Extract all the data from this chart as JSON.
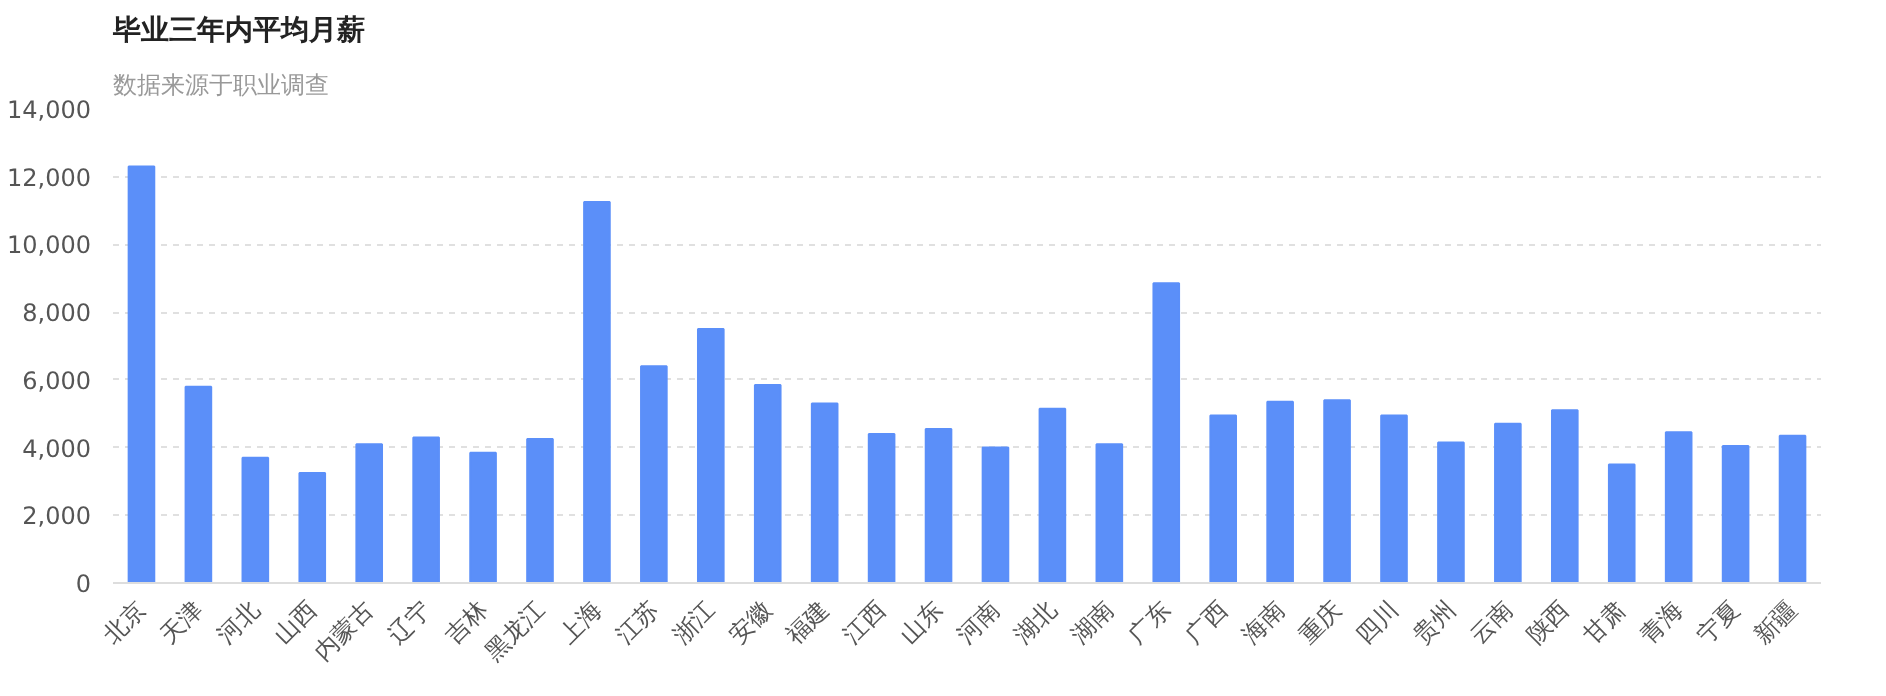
{
  "chart_data": {
    "type": "bar",
    "title": "毕业三年内平均月薪",
    "subtitle": "数据来源于职业调查",
    "categories": [
      "北京",
      "天津",
      "河北",
      "山西",
      "内蒙古",
      "辽宁",
      "吉林",
      "黑龙江",
      "上海",
      "江苏",
      "浙江",
      "安徽",
      "福建",
      "江西",
      "山东",
      "河南",
      "湖北",
      "湖南",
      "广东",
      "广西",
      "海南",
      "重庆",
      "四川",
      "贵州",
      "云南",
      "陕西",
      "甘肃",
      "青海",
      "宁夏",
      "新疆"
    ],
    "values": [
      12300,
      5800,
      3700,
      3250,
      4100,
      4300,
      3850,
      4250,
      11250,
      6400,
      7500,
      5850,
      5300,
      4400,
      4550,
      4000,
      5150,
      4100,
      8850,
      4950,
      5350,
      5400,
      4950,
      4150,
      4700,
      5100,
      3500,
      4450,
      4050,
      4350
    ],
    "color": "#5b8ff9",
    "ylim": [
      0,
      14000
    ],
    "yticks": [
      {
        "value": 0,
        "label": "0"
      },
      {
        "value": 2000,
        "label": "2,000"
      },
      {
        "value": 4000,
        "label": "4,000"
      },
      {
        "value": 6000,
        "label": "6,000"
      },
      {
        "value": 8000,
        "label": "8,000"
      },
      {
        "value": 10000,
        "label": "10,000"
      },
      {
        "value": 12000,
        "label": "12,000"
      },
      {
        "value": 14000,
        "label": "14,000"
      }
    ],
    "grid": "y"
  }
}
